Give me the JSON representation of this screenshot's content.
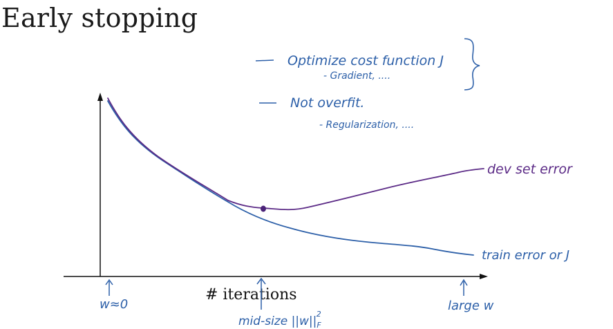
{
  "title": "Early stopping",
  "notes": {
    "line1": "Optimize cost function J",
    "line1_sub": "- Gradient, ....",
    "line2": "Not overfit.",
    "line2_sub": "- Regularization, ...."
  },
  "axis": {
    "xlabel": "# iterations"
  },
  "markers": {
    "start": "w≈0",
    "mid": "mid-size ||w||",
    "mid_sub": "F",
    "mid_sup": "2",
    "end": "large w"
  },
  "curves": {
    "dev": "dev set error",
    "train": "train error or J"
  },
  "colors": {
    "ink_blue": "#2c5fa8",
    "ink_purple": "#5b2a86",
    "axis": "#111111"
  }
}
